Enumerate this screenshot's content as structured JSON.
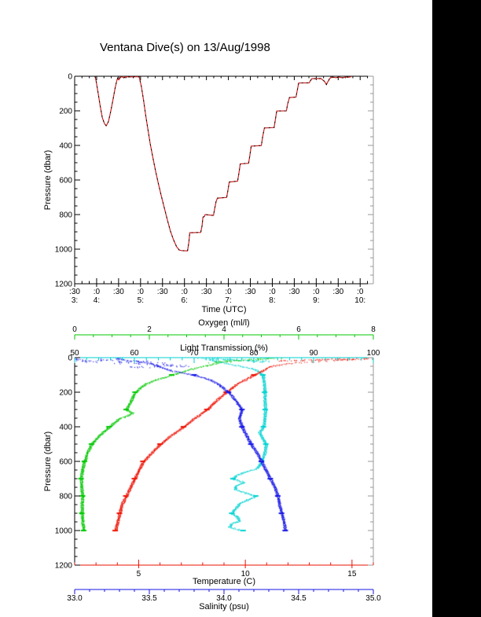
{
  "page": {
    "background": "#ffffff",
    "right_bar_color": "#000000"
  },
  "title": "Ventana Dive(s) on 13/Aug/1998",
  "colors": {
    "frame": "#000000",
    "frame_right": "#999999",
    "dive_line": "#cc2222",
    "dive_marker": "#000000",
    "oxygen": "#00c800",
    "light": "#00d2d2",
    "temperature": "#ee1100",
    "salinity": "#1414e6"
  },
  "chart_data": [
    {
      "type": "line",
      "id": "dive-depth-timeseries",
      "title": "Ventana Dive(s) on 13/Aug/1998",
      "xlabel": "Time (UTC)",
      "ylabel": "Pressure (dbar)",
      "xlim": [
        3.5,
        10.3
      ],
      "ylim": [
        1200,
        0
      ],
      "x_major_step_hours": 0.5,
      "x_minor_step_hours": 0.1666667,
      "x_tick_labels_minutes": [
        ":30",
        ":0",
        ":30",
        ":0",
        ":30",
        ":0",
        ":30",
        ":0",
        ":30",
        ":0",
        ":30",
        ":0",
        ":30",
        ":0"
      ],
      "x_tick_labels_hours": [
        "3:",
        "4:",
        "",
        "5:",
        "",
        "6:",
        "",
        "7:",
        "",
        "8:",
        "",
        "9:",
        "",
        "10:"
      ],
      "y_ticks": [
        "0",
        "200",
        "400",
        "600",
        "800",
        "1000",
        "1200"
      ],
      "y_major_step": 200,
      "y_minor_step": 50,
      "series": [
        {
          "name": "dive-pressure-profile",
          "points": [
            [
              3.965,
              2
            ],
            [
              3.99,
              30
            ],
            [
              4.03,
              90
            ],
            [
              4.08,
              170
            ],
            [
              4.13,
              240
            ],
            [
              4.18,
              275
            ],
            [
              4.22,
              287
            ],
            [
              4.27,
              262
            ],
            [
              4.32,
              205
            ],
            [
              4.37,
              140
            ],
            [
              4.42,
              70
            ],
            [
              4.46,
              25
            ],
            [
              4.48,
              10
            ],
            [
              4.51,
              20
            ],
            [
              4.54,
              6
            ],
            [
              4.58,
              3
            ],
            [
              4.62,
              9
            ],
            [
              4.66,
              3
            ],
            [
              4.75,
              4
            ],
            [
              4.85,
              3
            ],
            [
              4.97,
              3
            ],
            [
              5.02,
              60
            ],
            [
              5.07,
              140
            ],
            [
              5.12,
              230
            ],
            [
              5.17,
              310
            ],
            [
              5.22,
              390
            ],
            [
              5.28,
              470
            ],
            [
              5.34,
              545
            ],
            [
              5.4,
              615
            ],
            [
              5.47,
              690
            ],
            [
              5.54,
              760
            ],
            [
              5.61,
              830
            ],
            [
              5.68,
              895
            ],
            [
              5.75,
              945
            ],
            [
              5.82,
              985
            ],
            [
              5.88,
              1005
            ],
            [
              5.93,
              1008
            ],
            [
              6.07,
              1010
            ],
            [
              6.1,
              960
            ],
            [
              6.12,
              905
            ],
            [
              6.37,
              903
            ],
            [
              6.4,
              865
            ],
            [
              6.42,
              815
            ],
            [
              6.45,
              812
            ],
            [
              6.47,
              800
            ],
            [
              6.66,
              805
            ],
            [
              6.69,
              762
            ],
            [
              6.72,
              725
            ],
            [
              6.75,
              705
            ],
            [
              6.96,
              701
            ],
            [
              6.99,
              660
            ],
            [
              7.02,
              612
            ],
            [
              7.21,
              607
            ],
            [
              7.24,
              560
            ],
            [
              7.27,
              507
            ],
            [
              7.46,
              503
            ],
            [
              7.49,
              455
            ],
            [
              7.52,
              404
            ],
            [
              7.75,
              401
            ],
            [
              7.78,
              350
            ],
            [
              7.82,
              299
            ],
            [
              8.04,
              297
            ],
            [
              8.07,
              250
            ],
            [
              8.1,
              201
            ],
            [
              8.32,
              200
            ],
            [
              8.35,
              160
            ],
            [
              8.39,
              123
            ],
            [
              8.54,
              121
            ],
            [
              8.57,
              80
            ],
            [
              8.6,
              39
            ],
            [
              8.84,
              38
            ],
            [
              8.87,
              25
            ],
            [
              8.9,
              14
            ],
            [
              9.11,
              13
            ],
            [
              9.15,
              22
            ],
            [
              9.19,
              30
            ],
            [
              9.23,
              48
            ],
            [
              9.27,
              30
            ],
            [
              9.31,
              12
            ],
            [
              9.36,
              5
            ],
            [
              9.45,
              8
            ],
            [
              9.52,
              5
            ],
            [
              9.6,
              9
            ],
            [
              9.68,
              4
            ],
            [
              9.74,
              6
            ],
            [
              9.8,
              2
            ]
          ]
        }
      ]
    },
    {
      "type": "scatter",
      "id": "ctd-profiles",
      "ylabel": "Pressure (dbar)",
      "ylim": [
        1200,
        0
      ],
      "y_ticks": [
        "0",
        "200",
        "400",
        "600",
        "800",
        "1000",
        "1200"
      ],
      "y_major_step": 200,
      "y_minor_step": 50,
      "axes": [
        {
          "id": "oxygen",
          "label": "Oxygen (ml/l)",
          "color": "#00c800",
          "lim": [
            0,
            8
          ],
          "ticks": [
            0,
            2,
            4,
            6,
            8
          ],
          "tick_labels": [
            "0",
            "2",
            "4",
            "6",
            "8"
          ],
          "minor_step": 0.5
        },
        {
          "id": "light",
          "label": "Light Transmission (%)",
          "color": "#00d2d2",
          "lim": [
            50,
            100
          ],
          "ticks": [
            50,
            60,
            70,
            80,
            90,
            100
          ],
          "tick_labels": [
            "50",
            "60",
            "70",
            "80",
            "90",
            "100"
          ],
          "minor_step": 2
        },
        {
          "id": "temperature",
          "label": "Temperature (C)",
          "color": "#ee1100",
          "lim": [
            2,
            16
          ],
          "ticks": [
            5,
            10,
            15
          ],
          "tick_labels": [
            "5",
            "10",
            "15"
          ],
          "minor_step": 1
        },
        {
          "id": "salinity",
          "label": "Salinity (psu)",
          "color": "#1414e6",
          "lim": [
            33,
            35
          ],
          "ticks": [
            33,
            33.5,
            34,
            34.5,
            35
          ],
          "tick_labels": [
            "33.0",
            "33.5",
            "34.0",
            "34.5",
            "35.0"
          ],
          "minor_step": 0.1
        }
      ],
      "series": [
        {
          "name": "oxygen",
          "axis": "oxygen",
          "color": "#00c800",
          "profile": [
            [
              0,
              5.3
            ],
            [
              5,
              5.0
            ],
            [
              10,
              4.6
            ],
            [
              15,
              4.3
            ],
            [
              20,
              4.05
            ],
            [
              30,
              3.8
            ],
            [
              40,
              3.62
            ],
            [
              50,
              3.45
            ],
            [
              60,
              3.2
            ],
            [
              75,
              2.95
            ],
            [
              100,
              2.6
            ],
            [
              125,
              2.2
            ],
            [
              150,
              1.9
            ],
            [
              175,
              1.75
            ],
            [
              200,
              1.62
            ],
            [
              250,
              1.5
            ],
            [
              300,
              1.38
            ],
            [
              320,
              1.55
            ],
            [
              340,
              1.35
            ],
            [
              350,
              1.2
            ],
            [
              400,
              0.92
            ],
            [
              450,
              0.65
            ],
            [
              500,
              0.45
            ],
            [
              550,
              0.33
            ],
            [
              600,
              0.26
            ],
            [
              650,
              0.2
            ],
            [
              700,
              0.17
            ],
            [
              750,
              0.18
            ],
            [
              800,
              0.21
            ],
            [
              850,
              0.19
            ],
            [
              900,
              0.19
            ],
            [
              950,
              0.21
            ],
            [
              1000,
              0.24
            ]
          ],
          "surface_cloud": {
            "count": 60,
            "depth_range": [
              1,
              25
            ],
            "value_range": [
              3.6,
              5.35
            ],
            "corr": -1,
            "spread": 0.3
          }
        },
        {
          "name": "light-transmission",
          "axis": "light",
          "color": "#00d2d2",
          "profile": [
            [
              0,
              74
            ],
            [
              5,
              73
            ],
            [
              10,
              72.5
            ],
            [
              20,
              73.5
            ],
            [
              30,
              75
            ],
            [
              40,
              76.5
            ],
            [
              50,
              78
            ],
            [
              60,
              79.5
            ],
            [
              75,
              80.6
            ],
            [
              100,
              81.5
            ],
            [
              150,
              81.7
            ],
            [
              200,
              81.8
            ],
            [
              250,
              81.8
            ],
            [
              300,
              81.9
            ],
            [
              350,
              81.8
            ],
            [
              400,
              81.6
            ],
            [
              430,
              80.9
            ],
            [
              450,
              81.2
            ],
            [
              500,
              82.0
            ],
            [
              550,
              81.8
            ],
            [
              600,
              81.3
            ],
            [
              640,
              80.5
            ],
            [
              660,
              78.5
            ],
            [
              680,
              77.0
            ],
            [
              700,
              76.5
            ],
            [
              720,
              78.3
            ],
            [
              740,
              77.0
            ],
            [
              760,
              76.8
            ],
            [
              780,
              78.5
            ],
            [
              800,
              80.3
            ],
            [
              820,
              79.0
            ],
            [
              840,
              77.6
            ],
            [
              860,
              77.2
            ],
            [
              880,
              76.6
            ],
            [
              900,
              76.3
            ],
            [
              920,
              77.2
            ],
            [
              940,
              77.6
            ],
            [
              960,
              76.2
            ],
            [
              980,
              75.9
            ],
            [
              1000,
              78.2
            ]
          ],
          "surface_cloud": {
            "count": 70,
            "depth_range": [
              1,
              22
            ],
            "value_range": [
              71.5,
              82
            ],
            "corr": 1,
            "spread": 1.5
          }
        },
        {
          "name": "temperature",
          "axis": "temperature",
          "color": "#ee1100",
          "profile": [
            [
              0,
              15.8
            ],
            [
              5,
              15.5
            ],
            [
              10,
              15.0
            ],
            [
              15,
              14.2
            ],
            [
              20,
              13.4
            ],
            [
              25,
              12.7
            ],
            [
              30,
              12.2
            ],
            [
              40,
              11.6
            ],
            [
              50,
              11.2
            ],
            [
              60,
              11.0
            ],
            [
              75,
              10.8
            ],
            [
              100,
              10.4
            ],
            [
              125,
              10.0
            ],
            [
              150,
              9.6
            ],
            [
              175,
              9.35
            ],
            [
              200,
              9.1
            ],
            [
              250,
              8.6
            ],
            [
              300,
              8.2
            ],
            [
              325,
              7.9
            ],
            [
              350,
              7.6
            ],
            [
              400,
              7.1
            ],
            [
              450,
              6.5
            ],
            [
              500,
              6.0
            ],
            [
              550,
              5.6
            ],
            [
              600,
              5.2
            ],
            [
              650,
              5.0
            ],
            [
              700,
              4.8
            ],
            [
              750,
              4.6
            ],
            [
              800,
              4.4
            ],
            [
              850,
              4.2
            ],
            [
              900,
              4.1
            ],
            [
              950,
              4.0
            ],
            [
              1000,
              3.9
            ]
          ],
          "surface_cloud": {
            "count": 80,
            "depth_range": [
              2,
              18
            ],
            "value_range": [
              11.9,
              15.9
            ],
            "corr": -1,
            "spread": 0.6
          }
        },
        {
          "name": "salinity",
          "axis": "salinity",
          "color": "#1414e6",
          "profile": [
            [
              0,
              33.28
            ],
            [
              10,
              33.32
            ],
            [
              20,
              33.42
            ],
            [
              30,
              33.5
            ],
            [
              40,
              33.53
            ],
            [
              50,
              33.56
            ],
            [
              75,
              33.65
            ],
            [
              100,
              33.8
            ],
            [
              125,
              33.9
            ],
            [
              150,
              33.96
            ],
            [
              200,
              34.03
            ],
            [
              250,
              34.08
            ],
            [
              300,
              34.12
            ],
            [
              350,
              34.1
            ],
            [
              400,
              34.12
            ],
            [
              450,
              34.15
            ],
            [
              500,
              34.18
            ],
            [
              550,
              34.22
            ],
            [
              600,
              34.25
            ],
            [
              650,
              34.28
            ],
            [
              700,
              34.31
            ],
            [
              750,
              34.34
            ],
            [
              800,
              34.36
            ],
            [
              850,
              34.37
            ],
            [
              900,
              34.385
            ],
            [
              950,
              34.4
            ],
            [
              1000,
              34.41
            ]
          ],
          "surface_cloud": {
            "count": 120,
            "depth_range": [
              2,
              55
            ],
            "value_range": [
              33.1,
              33.62
            ],
            "corr": 1,
            "spread": 0.22
          }
        }
      ]
    }
  ]
}
